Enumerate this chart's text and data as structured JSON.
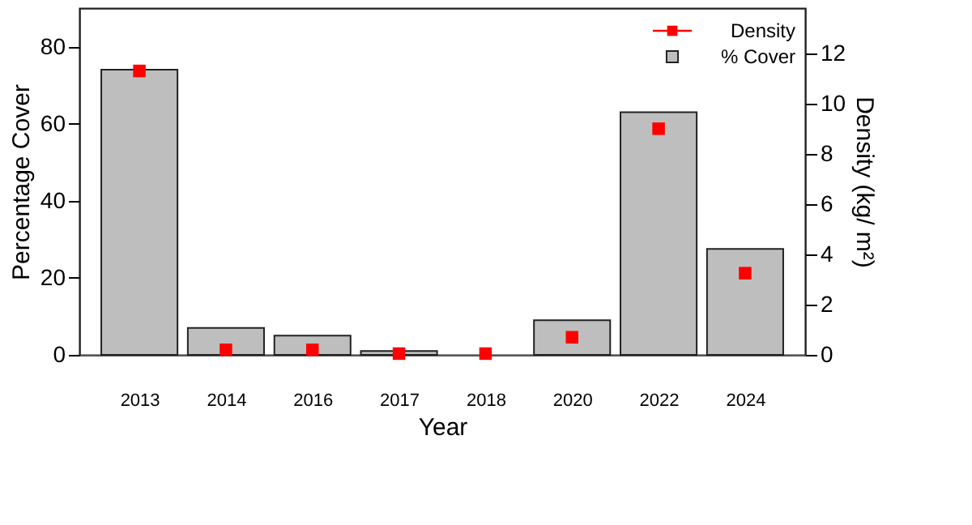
{
  "chart_data": {
    "type": "bar",
    "xlabel": "Year",
    "ylabel": "Percentage Cover",
    "y2label": "Density (kg/ m²)",
    "categories": [
      "2013",
      "2014",
      "2016",
      "2017",
      "2018",
      "2020",
      "2022",
      "2024"
    ],
    "series": [
      {
        "name": "% Cover",
        "color": "#bebebe",
        "values": [
          74,
          7,
          5,
          1,
          null,
          9,
          63,
          27.5
        ]
      },
      {
        "name": "Density",
        "type": "scatter",
        "axis": "y2",
        "marker": "square",
        "color": "#ff0000",
        "values": [
          11.3,
          0.2,
          0.2,
          0.05,
          0.05,
          0.7,
          9.0,
          3.25
        ]
      }
    ],
    "ylim": [
      0,
      90
    ],
    "yticks": [
      0,
      20,
      40,
      60,
      80
    ],
    "y2lim": [
      0,
      13.8
    ],
    "y2ticks": [
      0,
      2,
      4,
      6,
      8,
      10,
      12
    ],
    "grid": false,
    "legend": "top right"
  }
}
